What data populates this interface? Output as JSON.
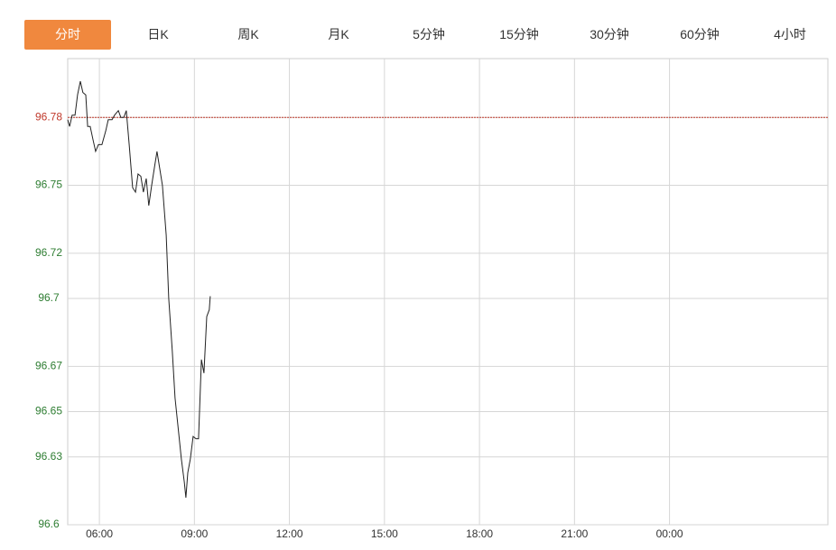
{
  "tabs": [
    "分时",
    "日K",
    "周K",
    "月K",
    "5分钟",
    "15分钟",
    "30分钟",
    "60分钟",
    "4小时"
  ],
  "active_tab": 0,
  "active_color": "#f0883e",
  "chart_data": {
    "type": "line",
    "xlim": [
      5,
      29
    ],
    "ylim": [
      96.6,
      96.806
    ],
    "yticks": [
      96.6,
      96.63,
      96.65,
      96.67,
      96.7,
      96.72,
      96.75,
      96.78
    ],
    "xticks": [
      {
        "value": 6,
        "label": "06:00"
      },
      {
        "value": 9,
        "label": "09:00"
      },
      {
        "value": 12,
        "label": "12:00"
      },
      {
        "value": 15,
        "label": "15:00"
      },
      {
        "value": 18,
        "label": "18:00"
      },
      {
        "value": 21,
        "label": "21:00"
      },
      {
        "value": 24,
        "label": "00:00"
      }
    ],
    "reference_value": 96.78,
    "up_color": "#c0392b",
    "down_color": "#2e7d32",
    "grid": true,
    "series": [
      {
        "color": "#222222",
        "x": [
          5.0,
          5.06,
          5.14,
          5.23,
          5.31,
          5.4,
          5.48,
          5.57,
          5.63,
          5.71,
          5.8,
          5.88,
          5.97,
          6.08,
          6.2,
          6.28,
          6.4,
          6.48,
          6.6,
          6.68,
          6.77,
          6.85,
          6.94,
          7.05,
          7.14,
          7.22,
          7.31,
          7.39,
          7.48,
          7.56,
          7.65,
          7.74,
          7.82,
          7.91,
          7.99,
          8.11,
          8.19,
          8.3,
          8.39,
          8.5,
          8.59,
          8.68,
          8.73,
          8.79,
          8.87,
          8.96,
          9.05,
          9.13,
          9.22,
          9.3,
          9.39,
          9.47,
          9.5
        ],
        "values": [
          96.779,
          96.776,
          96.781,
          96.781,
          96.79,
          96.796,
          96.791,
          96.79,
          96.776,
          96.776,
          96.77,
          96.765,
          96.768,
          96.768,
          96.774,
          96.779,
          96.779,
          96.781,
          96.783,
          96.78,
          96.78,
          96.783,
          96.768,
          96.749,
          96.747,
          96.755,
          96.754,
          96.747,
          96.753,
          96.741,
          96.75,
          96.758,
          96.765,
          96.757,
          96.75,
          96.728,
          96.7,
          96.677,
          96.656,
          96.641,
          96.629,
          96.619,
          96.612,
          96.623,
          96.629,
          96.639,
          96.638,
          96.638,
          96.673,
          96.667,
          96.692,
          96.695,
          96.701
        ]
      }
    ]
  }
}
